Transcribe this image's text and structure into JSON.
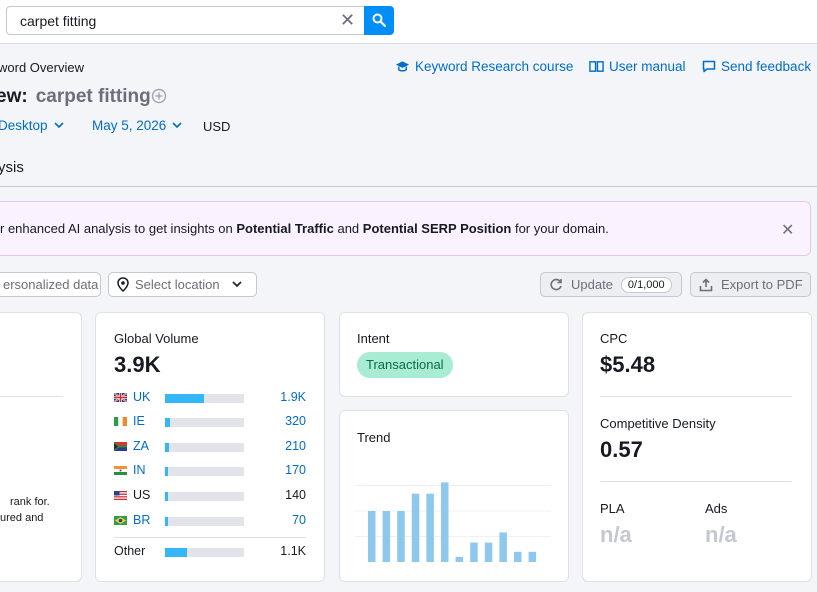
{
  "search": {
    "value": "carpet fitting"
  },
  "header": {
    "breadcrumb": "word Overview",
    "title_prefix": "ew:",
    "title_keyword": "carpet fitting",
    "links": [
      {
        "label": "Keyword Research course",
        "icon": "graduation-cap-icon"
      },
      {
        "label": "User manual",
        "icon": "book-icon"
      },
      {
        "label": "Send feedback",
        "icon": "feedback-icon"
      }
    ],
    "filters": {
      "device": "Desktop",
      "date": "May 5, 2026",
      "currency": "USD"
    },
    "tab": "ysis"
  },
  "banner": {
    "text_1": "r enhanced AI analysis to get insights on ",
    "bold_1": "Potential Traffic",
    "text_2": " and ",
    "bold_2": "Potential SERP Position",
    "text_3": " for your domain."
  },
  "toolbar": {
    "personalized": "ersonalized data",
    "location_placeholder": "Select location",
    "update_label": "Update",
    "update_count": "0/1,000",
    "export_label": "Export to PDF"
  },
  "left_card": {
    "text_line1": "rank for.",
    "text_line2": "ured and"
  },
  "volume": {
    "label": "Global Volume",
    "value": "3.9K",
    "countries": [
      {
        "code": "UK",
        "value": "1.9K",
        "share": 0.49
      },
      {
        "code": "IE",
        "value": "320",
        "share": 0.06
      },
      {
        "code": "ZA",
        "value": "210",
        "share": 0.05
      },
      {
        "code": "IN",
        "value": "170",
        "share": 0.04
      },
      {
        "code": "US",
        "value": "140",
        "share": 0.03
      },
      {
        "code": "BR",
        "value": "70",
        "share": 0.03
      }
    ],
    "other": {
      "label": "Other",
      "value": "1.1K",
      "share": 0.28
    }
  },
  "intent": {
    "label": "Intent",
    "badge": "Transactional"
  },
  "trend": {
    "label": "Trend",
    "chart_data": {
      "type": "bar",
      "values": [
        0.5,
        0.5,
        0.5,
        0.67,
        0.67,
        0.78,
        0.05,
        0.19,
        0.19,
        0.29,
        0.1,
        0.1
      ],
      "ylim": [
        0,
        1
      ]
    }
  },
  "cpc": {
    "label": "CPC",
    "value": "$5.48",
    "density_label": "Competitive Density",
    "density_value": "0.57",
    "pla_label": "PLA",
    "pla_value": "n/a",
    "ads_label": "Ads",
    "ads_value": "n/a"
  },
  "colors": {
    "accent": "#008ff8",
    "link": "#006dca",
    "bar": "#35b7f7",
    "trend_bar": "#8ec8ec",
    "intent_bg": "#a8ecd3"
  }
}
